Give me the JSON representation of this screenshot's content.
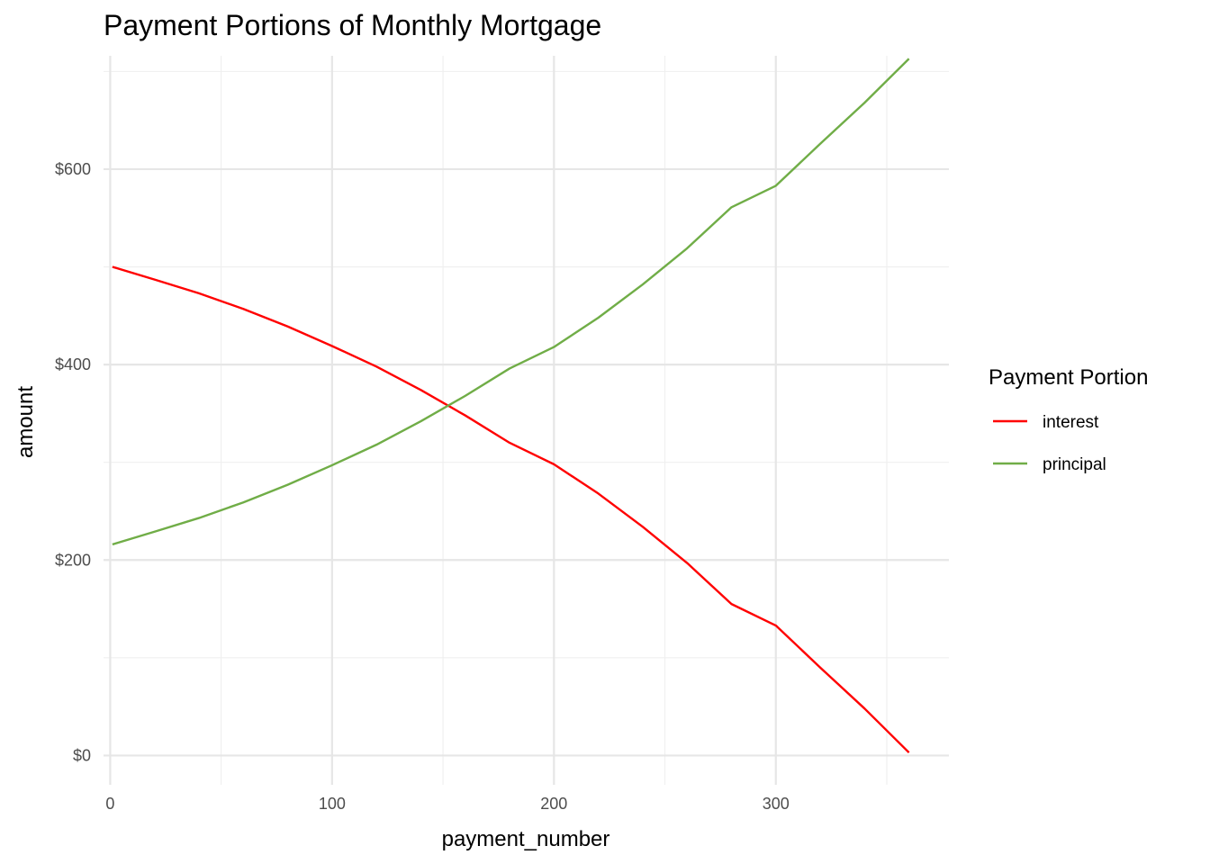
{
  "chart_data": {
    "type": "line",
    "title": "Payment Portions of Monthly Mortgage",
    "xlabel": "payment_number",
    "ylabel": "amount",
    "xlim": [
      -3,
      378
    ],
    "ylim": [
      -30,
      716
    ],
    "x_ticks": [
      0,
      100,
      200,
      300
    ],
    "x_tick_labels": [
      "0",
      "100",
      "200",
      "300"
    ],
    "x_minor": [
      50,
      150,
      250,
      350
    ],
    "y_ticks": [
      0,
      200,
      400,
      600
    ],
    "y_tick_labels": [
      "$0",
      "$200",
      "$400",
      "$600"
    ],
    "y_minor": [
      100,
      300,
      500,
      700
    ],
    "grid": true,
    "legend": {
      "title": "Payment Portion",
      "position": "right"
    },
    "x": [
      1,
      20,
      40,
      60,
      80,
      100,
      120,
      140,
      160,
      180,
      200,
      220,
      240,
      260,
      280,
      300,
      320,
      340,
      360
    ],
    "series": [
      {
        "name": "interest",
        "color": "#ff0000",
        "values": [
          500,
          487,
          473,
          457,
          439,
          419,
          398,
          374,
          348,
          320,
          298,
          268,
          234,
          197,
          155,
          133,
          90,
          48,
          3
        ]
      },
      {
        "name": "principal",
        "color": "#70ad47",
        "values": [
          216,
          229,
          243,
          259,
          277,
          297,
          318,
          342,
          368,
          396,
          418,
          448,
          482,
          519,
          561,
          583,
          626,
          668,
          713
        ]
      }
    ]
  }
}
